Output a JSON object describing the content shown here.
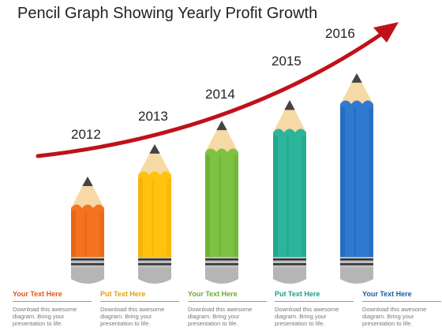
{
  "title": "Pencil Graph Showing Yearly Profit Growth",
  "colors": {
    "arrow": "#c0111a",
    "tip_wood": "#f7d9a6",
    "graphite": "#444444",
    "ferrule": "#bfbfbf"
  },
  "pencils": [
    {
      "year": "2012",
      "color": "#f47320",
      "dark": "#e05a10",
      "caption_title": "Your Text Here",
      "caption_color": "#e0561a",
      "caption_body": "Download this awesome diagram. Bring your presentation to life."
    },
    {
      "year": "2013",
      "color": "#ffc20e",
      "dark": "#f0a800",
      "caption_title": "Put Text Here",
      "caption_color": "#e3a110",
      "caption_body": "Download this awesome diagram. Bring your presentation to life."
    },
    {
      "year": "2014",
      "color": "#7dc242",
      "dark": "#5fa52c",
      "caption_title": "Your Text Here",
      "caption_color": "#6aab33",
      "caption_body": "Download this awesome diagram. Bring your presentation to life."
    },
    {
      "year": "2015",
      "color": "#2bb59a",
      "dark": "#1b9a82",
      "caption_title": "Put Text Here",
      "caption_color": "#1f9e86",
      "caption_body": "Download this awesome diagram. Bring your presentation to life."
    },
    {
      "year": "2016",
      "color": "#2f7ad0",
      "dark": "#1f62b5",
      "caption_title": "Your Text Here",
      "caption_color": "#1d5aa6",
      "caption_body": "Download this awesome diagram. Bring your presentation to life."
    }
  ]
}
